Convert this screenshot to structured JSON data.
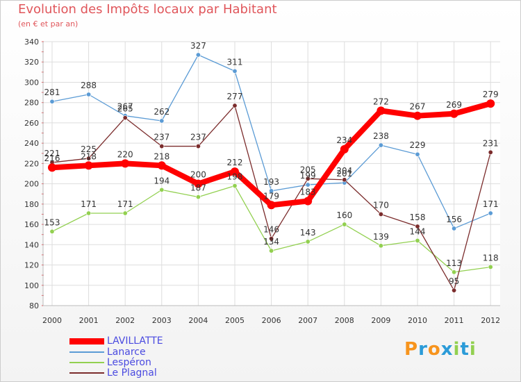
{
  "chart_data": {
    "type": "line",
    "title": "Evolution des Impôts locaux par Habitant",
    "subtitle": "(en € et par an)",
    "xlabel": "",
    "ylabel": "",
    "ylim": [
      80,
      340
    ],
    "yticks": [
      80,
      100,
      120,
      140,
      160,
      180,
      200,
      220,
      240,
      260,
      280,
      300,
      320,
      340
    ],
    "grid": true,
    "legend_position": "bottom-left",
    "categories": [
      "2000",
      "2001",
      "2002",
      "2003",
      "2004",
      "2005",
      "2006",
      "2007",
      "2008",
      "2009",
      "2010",
      "2011",
      "2012"
    ],
    "series": [
      {
        "name": "LAVILLATTE",
        "color": "#ff0000",
        "values": [
          216,
          218,
          220,
          218,
          200,
          212,
          179,
          183,
          234,
          272,
          267,
          269,
          279
        ]
      },
      {
        "name": "Lanarce",
        "color": "#5b9bd5",
        "values": [
          281,
          288,
          267,
          262,
          327,
          311,
          193,
          199,
          201,
          238,
          229,
          156,
          171
        ]
      },
      {
        "name": "Lespéron",
        "color": "#92d050",
        "values": [
          153,
          171,
          171,
          194,
          187,
          198,
          134,
          143,
          160,
          139,
          144,
          113,
          118
        ]
      },
      {
        "name": "Le Plagnal",
        "color": "#7b2c2c",
        "values": [
          221,
          225,
          265,
          237,
          237,
          277,
          146,
          205,
          204,
          170,
          158,
          95,
          231
        ]
      }
    ],
    "data_labels": [
      [
        "216",
        "218",
        "220",
        "218",
        "200",
        "212",
        "179",
        "183",
        "234",
        "272",
        "267",
        "269",
        "279"
      ],
      [
        "281",
        "288",
        "267",
        "262",
        "327",
        "311",
        "193",
        "199",
        "201",
        "238",
        "229",
        "156",
        "171"
      ],
      [
        "153",
        "171",
        "171",
        "194",
        "187",
        "198",
        "134",
        "143",
        "160",
        "139",
        "144",
        "113",
        "118"
      ],
      [
        "221",
        "225",
        "265",
        "237",
        "237",
        "277",
        "146",
        "205",
        "204",
        "170",
        "158",
        "95",
        "231"
      ]
    ]
  },
  "brand": {
    "text": "Proxiti",
    "letters": [
      "P",
      "r",
      "o",
      "x",
      "i",
      "t",
      "i"
    ],
    "colors": [
      "#f7941d",
      "#2b9bd8",
      "#f7941d",
      "#2b9bd8",
      "#92d050",
      "#2b9bd8",
      "#92d050"
    ]
  }
}
